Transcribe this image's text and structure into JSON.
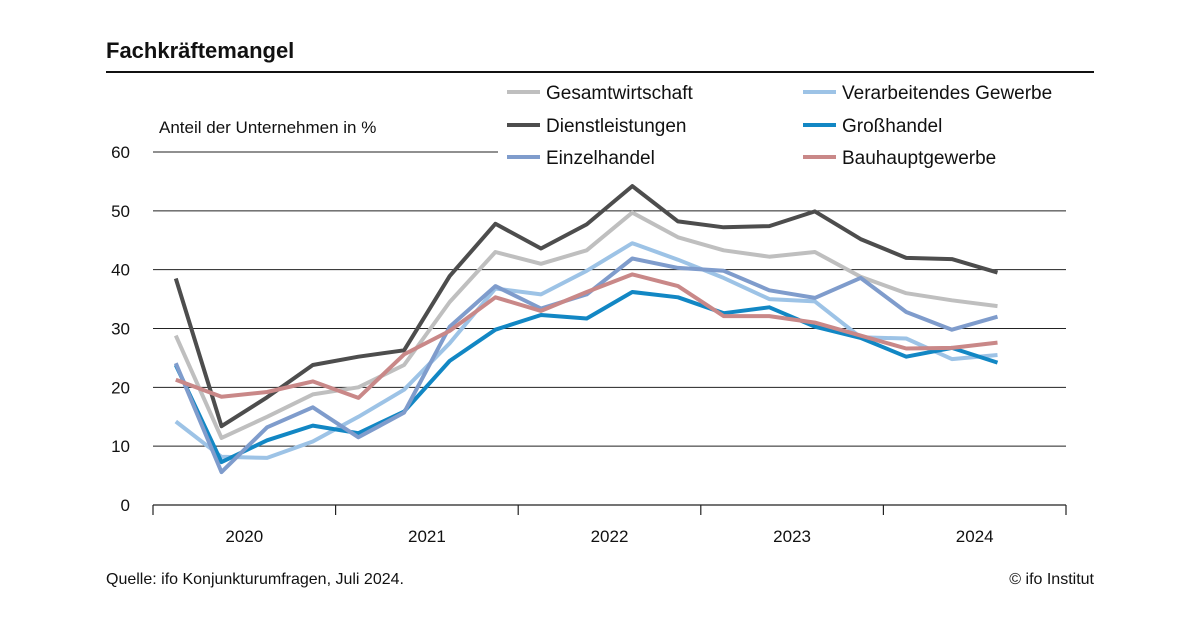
{
  "header": {
    "title": "Fachkräftemangel"
  },
  "footer": {
    "source": "Quelle: ifo Konjunkturumfragen, Juli 2024.",
    "copyright": "© ifo Institut"
  },
  "chart_data": {
    "type": "line",
    "title": "Fachkräftemangel",
    "ylabel": "Anteil der Unternehmen in %",
    "xlabel": "",
    "ylim": [
      0,
      60
    ],
    "yticks": [
      0,
      10,
      20,
      30,
      40,
      50,
      60
    ],
    "xlim": [
      2019.375,
      2024.375
    ],
    "year_labels": [
      "2020",
      "2021",
      "2022",
      "2023",
      "2024"
    ],
    "grid": true,
    "legend_position": "top-right",
    "x": [
      2019.5,
      2019.75,
      2020.0,
      2020.25,
      2020.5,
      2020.75,
      2021.0,
      2021.25,
      2021.5,
      2021.75,
      2022.0,
      2022.25,
      2022.5,
      2022.75,
      2023.0,
      2023.25,
      2023.5,
      2023.75,
      2024.0,
      2024.25
    ],
    "series": [
      {
        "name": "Gesamtwirtschaft",
        "color": "#bfbfbf",
        "values": [
          28.8,
          11.4,
          15,
          18.8,
          20,
          23.8,
          34.5,
          43,
          41,
          43.3,
          49.7,
          45.5,
          43.3,
          42.2,
          43,
          38.8,
          36,
          34.8,
          33.8,
          null
        ]
      },
      {
        "name": "Verarbeitendes Gewerbe",
        "color": "#9dc3e6",
        "values": [
          14.2,
          8.2,
          8,
          10.8,
          15,
          19.6,
          27.5,
          36.8,
          35.8,
          39.8,
          44.5,
          41.7,
          38.6,
          35,
          34.6,
          28.5,
          28.3,
          24.8,
          25.5,
          null
        ]
      },
      {
        "name": "Dienstleistungen",
        "color": "#4d4d4d",
        "values": [
          38.5,
          13.4,
          18.3,
          23.8,
          25.2,
          26.3,
          38.9,
          47.8,
          43.6,
          47.7,
          54.2,
          48.2,
          47.2,
          47.4,
          49.9,
          45.2,
          42,
          41.8,
          39.5,
          null
        ]
      },
      {
        "name": "Großhandel",
        "color": "#1287c4",
        "values": [
          23.8,
          7.3,
          11,
          13.5,
          12.2,
          15.9,
          24.5,
          29.8,
          32.3,
          31.7,
          36.2,
          35.3,
          32.6,
          33.6,
          30.3,
          28.4,
          25.2,
          26.7,
          24.2,
          null
        ]
      },
      {
        "name": "Einzelhandel",
        "color": "#7f9ccc",
        "values": [
          24.1,
          5.6,
          13.2,
          16.6,
          11.5,
          15.7,
          30.3,
          37.2,
          33.4,
          35.8,
          41.9,
          40.3,
          39.8,
          36.5,
          35.2,
          38.6,
          32.8,
          29.8,
          32,
          null
        ]
      },
      {
        "name": "Bauhauptgewerbe",
        "color": "#c98888",
        "values": [
          21.3,
          18.4,
          19.2,
          21,
          18.2,
          25.6,
          29.6,
          35.3,
          33,
          36.2,
          39.2,
          37.2,
          32.1,
          32.1,
          31,
          28.8,
          26.6,
          26.7,
          27.6,
          null
        ]
      }
    ]
  }
}
